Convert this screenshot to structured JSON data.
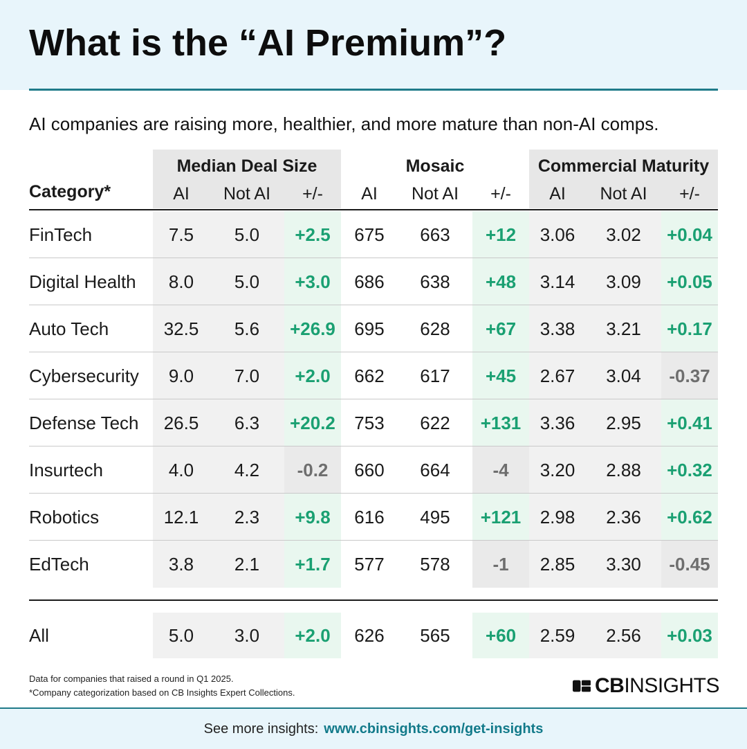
{
  "title": "What is the “AI Premium”?",
  "subtitle": "AI companies are raising more, healthier, and more mature than non-AI comps.",
  "chart_data": {
    "type": "table",
    "category_header": "Category*",
    "groups": [
      {
        "name": "Median Deal Size",
        "columns": [
          "AI",
          "Not AI",
          "+/-"
        ]
      },
      {
        "name": "Mosaic",
        "columns": [
          "AI",
          "Not AI",
          "+/-"
        ]
      },
      {
        "name": "Commercial Maturity",
        "columns": [
          "AI",
          "Not AI",
          "+/-"
        ]
      }
    ],
    "rows": [
      {
        "category": "FinTech",
        "values": [
          "7.5",
          "5.0",
          "+2.5",
          "675",
          "663",
          "+12",
          "3.06",
          "3.02",
          "+0.04"
        ]
      },
      {
        "category": "Digital Health",
        "values": [
          "8.0",
          "5.0",
          "+3.0",
          "686",
          "638",
          "+48",
          "3.14",
          "3.09",
          "+0.05"
        ]
      },
      {
        "category": "Auto Tech",
        "values": [
          "32.5",
          "5.6",
          "+26.9",
          "695",
          "628",
          "+67",
          "3.38",
          "3.21",
          "+0.17"
        ]
      },
      {
        "category": "Cybersecurity",
        "values": [
          "9.0",
          "7.0",
          "+2.0",
          "662",
          "617",
          "+45",
          "2.67",
          "3.04",
          "-0.37"
        ]
      },
      {
        "category": "Defense Tech",
        "values": [
          "26.5",
          "6.3",
          "+20.2",
          "753",
          "622",
          "+131",
          "3.36",
          "2.95",
          "+0.41"
        ]
      },
      {
        "category": "Insurtech",
        "values": [
          "4.0",
          "4.2",
          "-0.2",
          "660",
          "664",
          "-4",
          "3.20",
          "2.88",
          "+0.32"
        ]
      },
      {
        "category": "Robotics",
        "values": [
          "12.1",
          "2.3",
          "+9.8",
          "616",
          "495",
          "+121",
          "2.98",
          "2.36",
          "+0.62"
        ]
      },
      {
        "category": "EdTech",
        "values": [
          "3.8",
          "2.1",
          "+1.7",
          "577",
          "578",
          "-1",
          "2.85",
          "3.30",
          "-0.45"
        ]
      }
    ],
    "total_row": {
      "category": "All",
      "values": [
        "5.0",
        "3.0",
        "+2.0",
        "626",
        "565",
        "+60",
        "2.59",
        "2.56",
        "+0.03"
      ]
    }
  },
  "notes": [
    "Data for companies that raised a round in Q1 2025.",
    "*Company categorization based on CB Insights Expert Collections."
  ],
  "brand": {
    "bold": "CB",
    "light": "INSIGHTS"
  },
  "footer": {
    "text": "See more insights:",
    "link": "www.cbinsights.com/get-insights"
  },
  "colors": {
    "positive": "#1aa072",
    "neutral": "#6e6e6e",
    "accent": "#1f7a89",
    "header_bg": "#e8f5fb"
  }
}
